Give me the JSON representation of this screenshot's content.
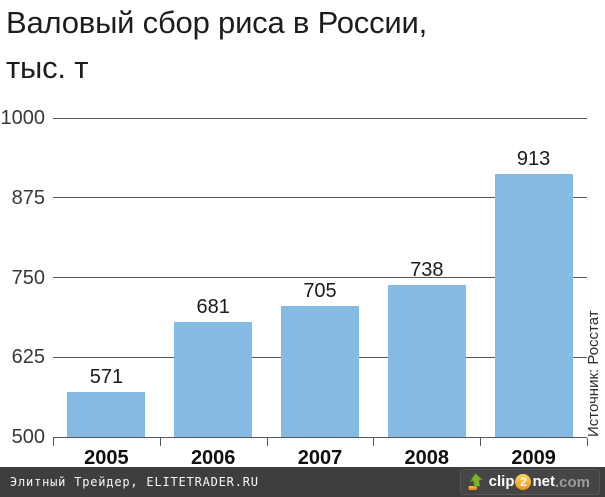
{
  "header": {
    "title_line1": "Валовый сбор риса в России,",
    "title_line2": "тыс. т"
  },
  "chart_data": {
    "type": "bar",
    "title": "Валовый сбор риса в России, тыс. т",
    "categories": [
      "2005",
      "2006",
      "2007",
      "2008",
      "2009"
    ],
    "values": [
      571,
      681,
      705,
      738,
      913
    ],
    "ylim": [
      500,
      1000
    ],
    "yticks": [
      500,
      625,
      750,
      875,
      1000
    ],
    "xlabel": "",
    "ylabel": "тыс. т",
    "grid": true,
    "legend": "none",
    "bar_color": "#85bbe3",
    "grid_color": "#575757",
    "source": "Источник: Росстат"
  },
  "footer": {
    "site_label": "Элитный Трейдер, ELITETRADER.RU",
    "logo": {
      "arrow_icon": "upload-arrow",
      "part1": "clip",
      "part2": "2",
      "part3": "net",
      "part4": ".com"
    }
  }
}
